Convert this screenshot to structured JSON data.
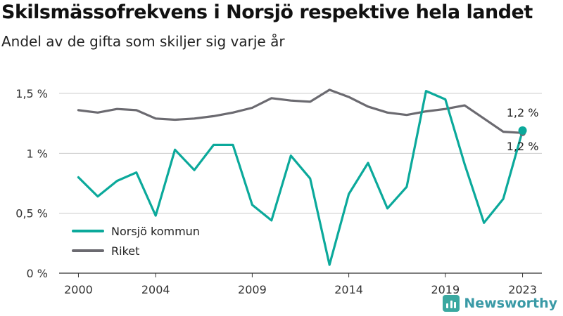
{
  "header": {
    "title": "Skilsmässofrekvens i Norsjö respektive hela landet",
    "subtitle": "Andel av de gifta som skiljer sig varje år"
  },
  "brand": {
    "name": "Newsworthy",
    "icon": "newsworthy-logo-icon"
  },
  "chart_data": {
    "type": "line",
    "x": [
      2000,
      2001,
      2002,
      2003,
      2004,
      2005,
      2006,
      2007,
      2008,
      2009,
      2010,
      2011,
      2012,
      2013,
      2014,
      2015,
      2016,
      2017,
      2018,
      2019,
      2020,
      2021,
      2022,
      2023
    ],
    "xticks": [
      2000,
      2004,
      2009,
      2014,
      2019,
      2023
    ],
    "xtick_labels": [
      "2000",
      "2004",
      "2009",
      "2014",
      "2019",
      "2023"
    ],
    "yticks": [
      0,
      0.5,
      1,
      1.5
    ],
    "ytick_labels": [
      "0 %",
      "0,5 %",
      "1 %",
      "1,5 %"
    ],
    "ylim": [
      0,
      1.5
    ],
    "xlim": [
      1999,
      2024
    ],
    "grid": "horizontal",
    "legend_position": "bottom-left",
    "series": [
      {
        "name": "Norsjö kommun",
        "color": "#0ba99b",
        "values": [
          0.8,
          0.64,
          0.77,
          0.84,
          0.48,
          1.03,
          0.86,
          1.07,
          1.07,
          0.57,
          0.44,
          0.98,
          0.79,
          0.07,
          0.66,
          0.92,
          0.54,
          0.72,
          1.52,
          1.45,
          0.91,
          0.42,
          0.62,
          1.19
        ],
        "end_label": "1,2 %"
      },
      {
        "name": "Riket",
        "color": "#6b6a70",
        "values": [
          1.36,
          1.34,
          1.37,
          1.36,
          1.29,
          1.28,
          1.29,
          1.31,
          1.34,
          1.38,
          1.46,
          1.44,
          1.43,
          1.53,
          1.47,
          1.39,
          1.34,
          1.32,
          1.35,
          1.37,
          1.4,
          1.29,
          1.18,
          1.17
        ],
        "end_label": "1,2 %"
      }
    ]
  }
}
